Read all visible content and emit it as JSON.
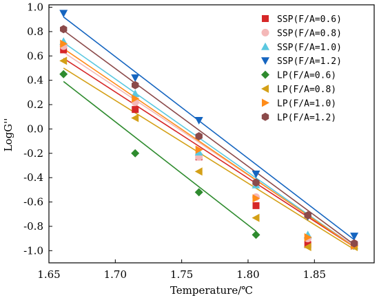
{
  "chart_data": {
    "type": "scatter",
    "title": "",
    "xlabel": "Temperature/℃",
    "ylabel": "LogG''",
    "xlim": [
      1.65,
      1.895
    ],
    "ylim": [
      -1.1,
      1.02
    ],
    "xticks": [
      "1.65",
      "1.70",
      "1.75",
      "1.80",
      "1.85"
    ],
    "yticks": [
      "1.0",
      "0.8",
      "0.6",
      "0.4",
      "0.2",
      "0.0",
      "-0.2",
      "-0.4",
      "-0.6",
      "-0.8",
      "-1.0"
    ],
    "grid": false,
    "legend_position": "top-right",
    "x": [
      1.661,
      1.715,
      1.763,
      1.806,
      1.845,
      1.88
    ],
    "series": [
      {
        "name": "SSP(F/A=0.6)",
        "color": "#d62728",
        "marker": "square",
        "values": [
          0.65,
          0.16,
          -0.23,
          -0.63,
          -0.95,
          -0.96
        ],
        "fit": [
          [
            1.661,
            0.58
          ],
          [
            1.88,
            -0.97
          ]
        ]
      },
      {
        "name": "SSP(F/A=0.8)",
        "color": "#f4b8b8",
        "marker": "circle",
        "values": [
          0.68,
          0.22,
          -0.23,
          -0.56,
          -0.9,
          -0.94
        ],
        "fit": [
          [
            1.661,
            0.63
          ],
          [
            1.88,
            -0.96
          ]
        ]
      },
      {
        "name": "SSP(F/A=1.0)",
        "color": "#5bc8e0",
        "marker": "triangle-up",
        "values": [
          0.72,
          0.29,
          -0.19,
          -0.46,
          -0.87,
          -0.96
        ],
        "fit": [
          [
            1.661,
            0.71
          ],
          [
            1.88,
            -0.97
          ]
        ]
      },
      {
        "name": "SSP(F/A=1.2)",
        "color": "#1565c0",
        "marker": "triangle-down",
        "values": [
          0.95,
          0.42,
          0.07,
          -0.37,
          -0.72,
          -0.88
        ],
        "fit": [
          [
            1.661,
            0.92
          ],
          [
            1.88,
            -0.91
          ]
        ]
      },
      {
        "name": "LP(F/A=0.6)",
        "color": "#2e8b2e",
        "marker": "diamond",
        "values": [
          0.45,
          -0.2,
          -0.52,
          -0.87
        ],
        "fit": [
          [
            1.661,
            0.39
          ],
          [
            1.806,
            -0.84
          ]
        ]
      },
      {
        "name": "LP(F/A=0.8)",
        "color": "#d4a017",
        "marker": "triangle-left",
        "values": [
          0.56,
          0.09,
          -0.35,
          -0.73,
          -0.97,
          -0.97
        ],
        "fit": [
          [
            1.661,
            0.5
          ],
          [
            1.88,
            -0.99
          ]
        ]
      },
      {
        "name": "LP(F/A=1.0)",
        "color": "#ff8c1a",
        "marker": "triangle-right",
        "values": [
          0.7,
          0.25,
          -0.17,
          -0.57,
          -0.89,
          -0.96
        ],
        "fit": [
          [
            1.661,
            0.66
          ],
          [
            1.88,
            -0.97
          ]
        ]
      },
      {
        "name": "LP(F/A=1.2)",
        "color": "#8b4a4a",
        "marker": "hexagon",
        "values": [
          0.82,
          0.36,
          -0.06,
          -0.44,
          -0.71,
          -0.94
        ],
        "fit": [
          [
            1.661,
            0.81
          ],
          [
            1.88,
            -0.95
          ]
        ]
      }
    ]
  }
}
